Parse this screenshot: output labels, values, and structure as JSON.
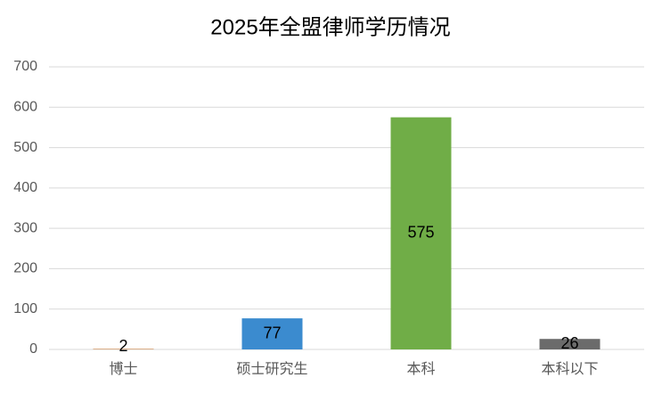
{
  "chart_data": {
    "type": "bar",
    "title": "2025年全盟律师学历情况",
    "categories": [
      "博士",
      "硕士研究生",
      "本科",
      "本科以下"
    ],
    "values": [
      2,
      77,
      575,
      26
    ],
    "colors": [
      "#d9a77c",
      "#3b8bcf",
      "#70ad47",
      "#6b6b6b"
    ],
    "ylim": [
      0,
      700
    ],
    "yticks": [
      0,
      100,
      200,
      300,
      400,
      500,
      600,
      700
    ],
    "grid": true
  }
}
